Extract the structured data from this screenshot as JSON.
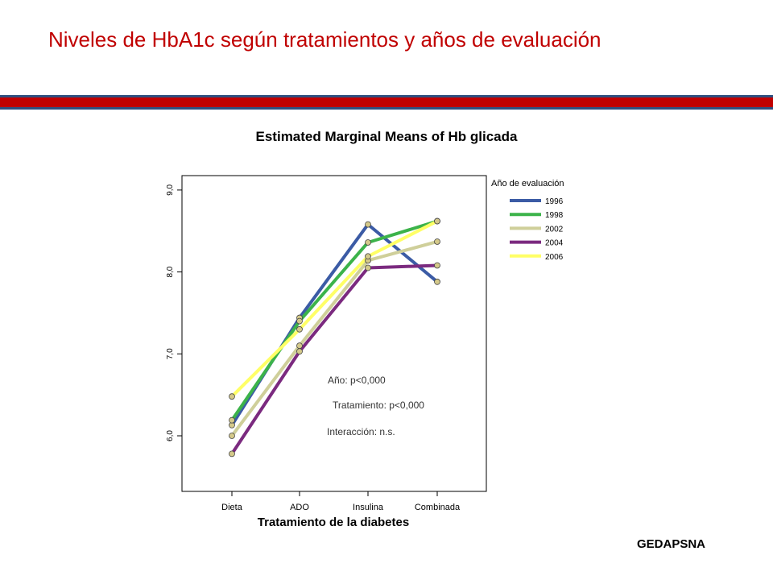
{
  "slide": {
    "title": "Niveles de HbA1c según tratamientos y años de evaluación",
    "footer": "GEDAPSNA"
  },
  "annotations": {
    "year": "Año:  p<0,000",
    "treatment": "Tratamiento:  p<0,000",
    "interaction": "Interacción: n.s."
  },
  "chart_data": {
    "type": "line",
    "title": "Estimated Marginal Means of Hb glicada",
    "xlabel": "Tratamiento de la diabetes",
    "ylabel": "",
    "categories": [
      "Dieta",
      "ADO",
      "Insulina",
      "Combinada"
    ],
    "ylim": [
      5.3,
      9.2
    ],
    "yticks": [
      6.0,
      7.0,
      8.0,
      9.0
    ],
    "ytick_labels": [
      "6,0",
      "7,0",
      "8,0",
      "9,0"
    ],
    "legend_title": "Año de evaluación",
    "legend_position": "top-right",
    "grid": false,
    "series": [
      {
        "name": "1996",
        "color": "#3b5ba5",
        "values": [
          6.13,
          7.44,
          8.58,
          7.88
        ]
      },
      {
        "name": "1998",
        "color": "#3cb34a",
        "values": [
          6.19,
          7.4,
          8.36,
          8.62
        ]
      },
      {
        "name": "2002",
        "color": "#cfcf9a",
        "values": [
          6.0,
          7.1,
          8.14,
          8.37
        ]
      },
      {
        "name": "2004",
        "color": "#7b2a7f",
        "values": [
          5.78,
          7.03,
          8.05,
          8.08
        ]
      },
      {
        "name": "2006",
        "color": "#ffff66",
        "values": [
          6.48,
          7.3,
          8.19,
          8.62
        ]
      }
    ],
    "marker_color": "#d4c98a"
  }
}
